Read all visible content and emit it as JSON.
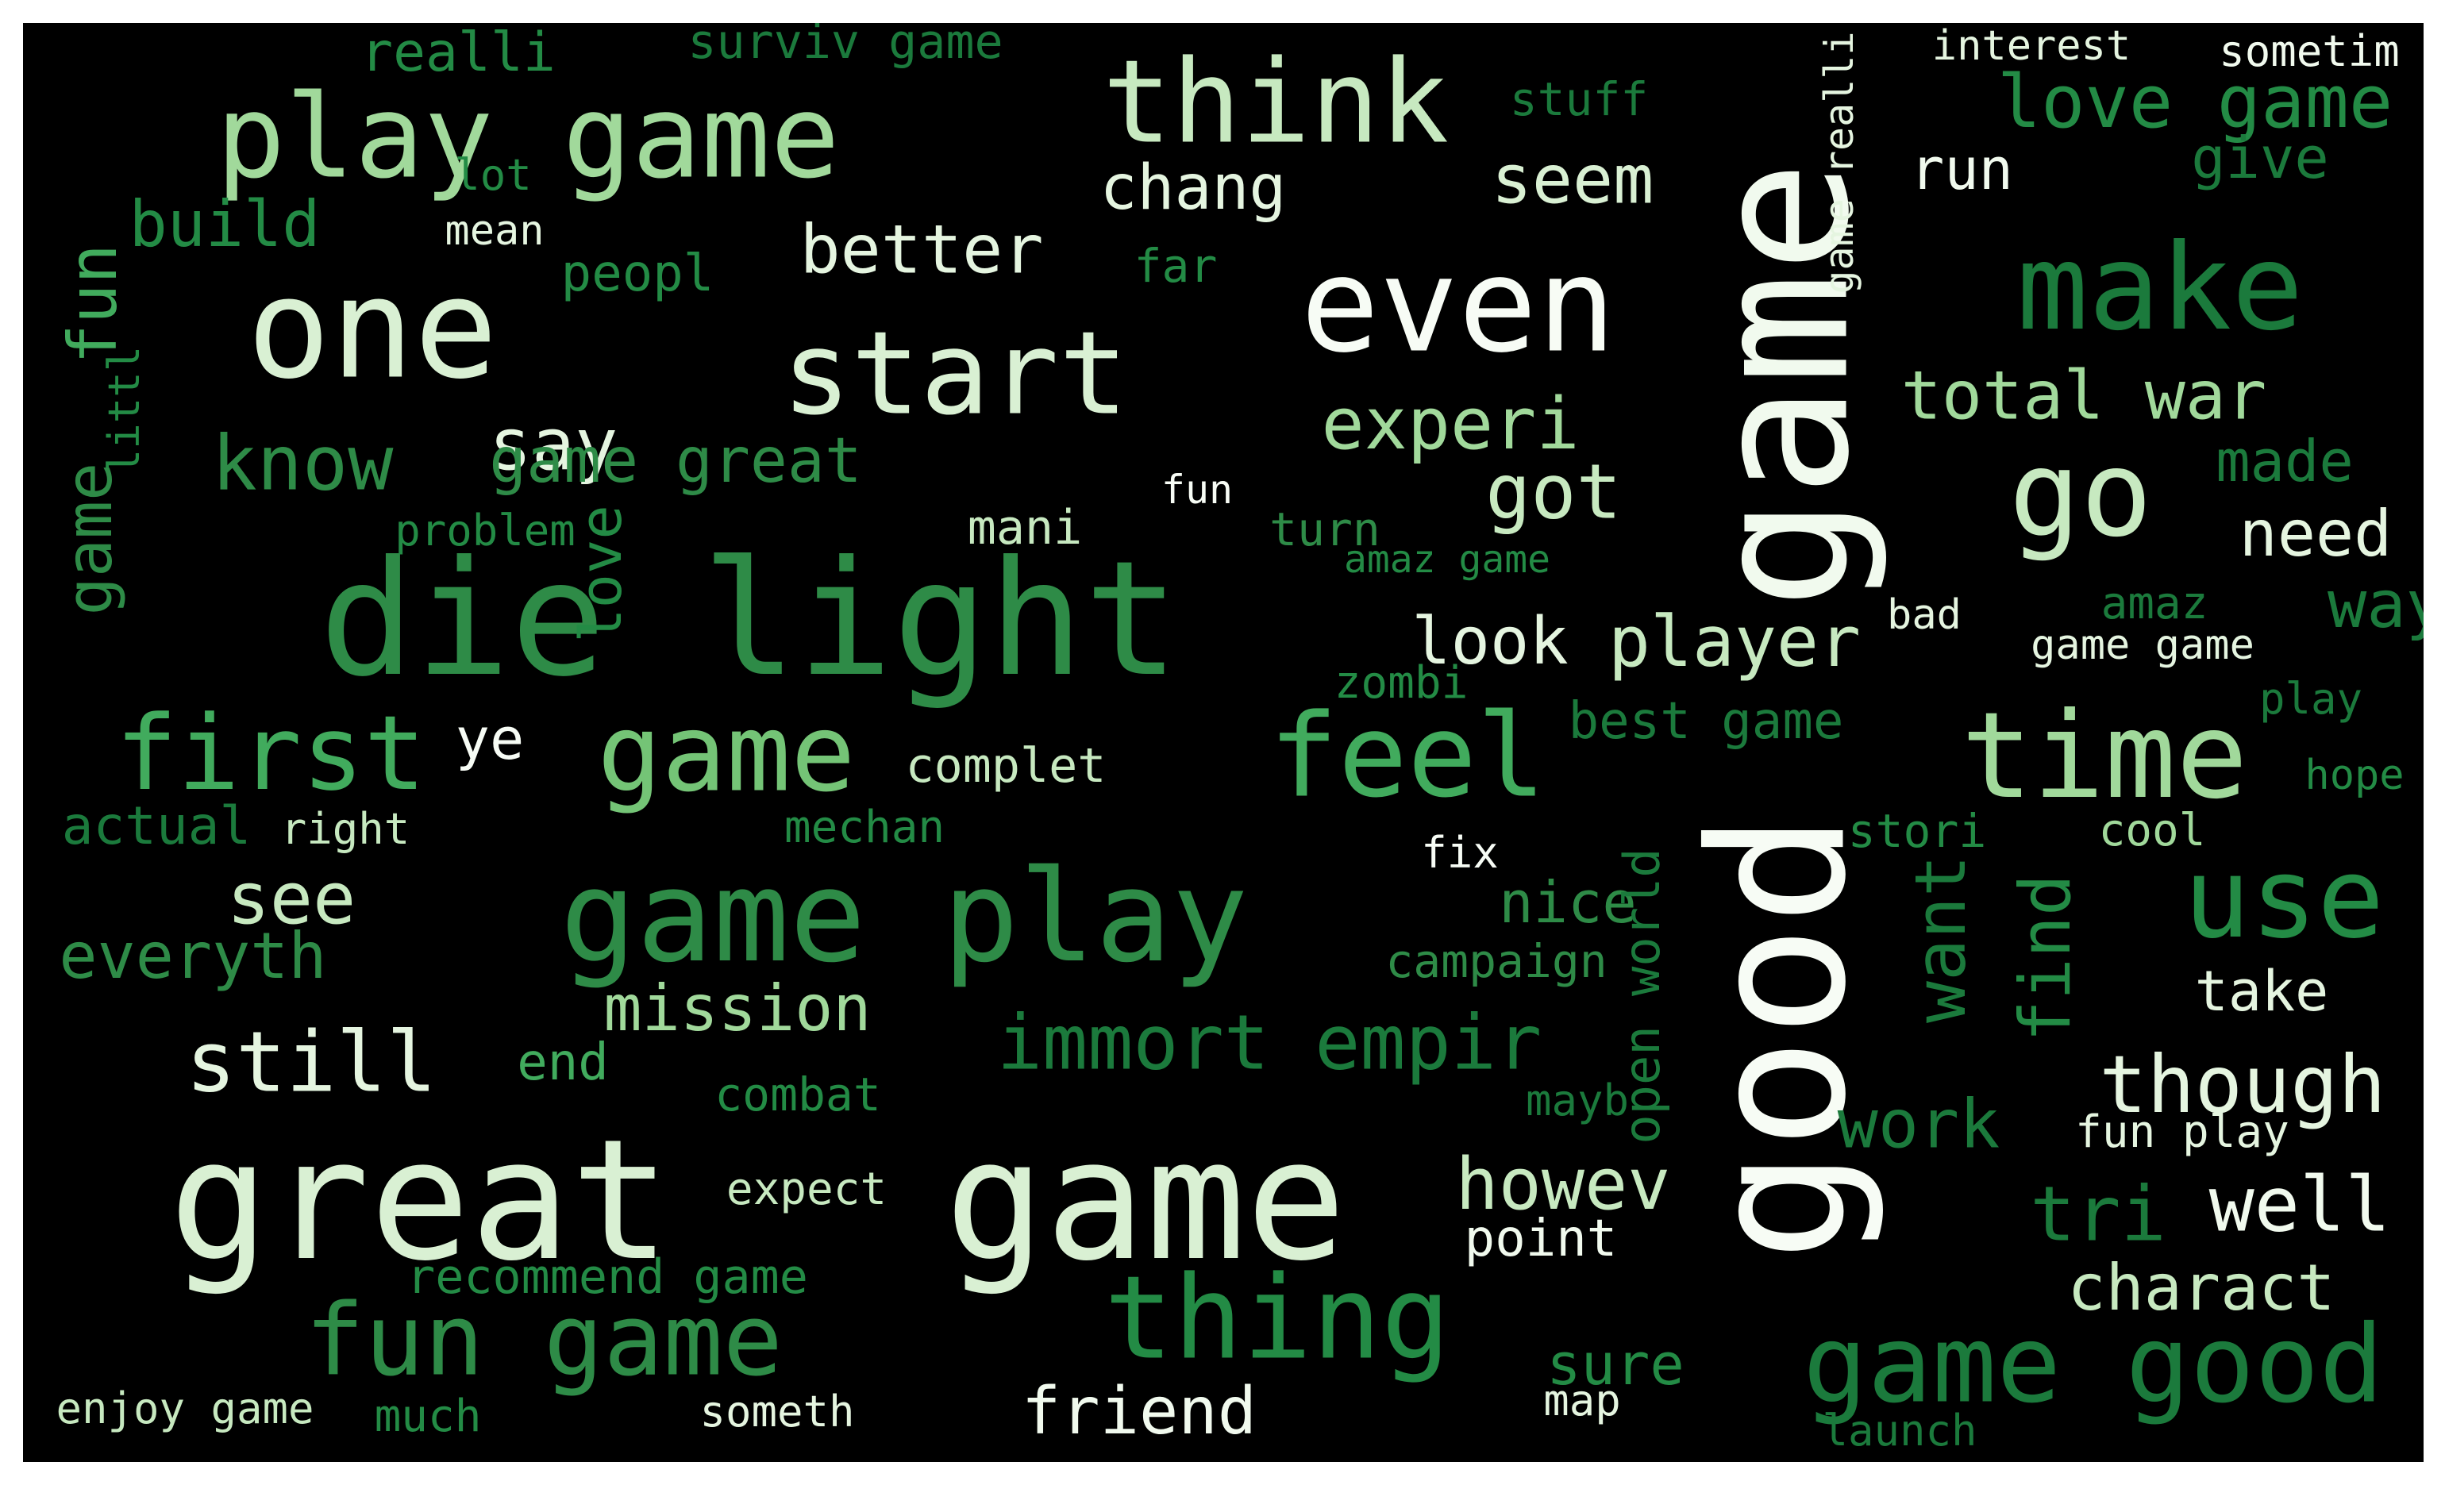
{
  "background": "#000000",
  "palette": [
    "#f1faee",
    "#d9f0d3",
    "#a1d99b",
    "#74c476",
    "#41ab5d",
    "#238b45",
    "#006d2c"
  ],
  "words": [
    {
      "text": "game",
      "color": "#f1faee",
      "rot": true
    },
    {
      "text": "good",
      "color": "#f7fcf5",
      "rot": true
    },
    {
      "text": "great",
      "color": "#d9f0d3"
    },
    {
      "text": "game",
      "color": "#d9f0d3"
    },
    {
      "text": "die light",
      "color": "#2e8b47"
    },
    {
      "text": "game play",
      "color": "#2e8b47"
    },
    {
      "text": "one",
      "color": "#d9f0d3"
    },
    {
      "text": "even",
      "color": "#f7fcf5"
    },
    {
      "text": "play game",
      "color": "#a1d99b"
    },
    {
      "text": "think",
      "color": "#c7e9c0"
    },
    {
      "text": "start",
      "color": "#d9f0d3"
    },
    {
      "text": "make",
      "color": "#1b7a3c"
    },
    {
      "text": "go",
      "color": "#c7e9c0"
    },
    {
      "text": "time",
      "color": "#a1d99b"
    },
    {
      "text": "feel",
      "color": "#41ab5d"
    },
    {
      "text": "first",
      "color": "#41ab5d"
    },
    {
      "text": "game",
      "color": "#74c476"
    },
    {
      "text": "use",
      "color": "#238b45"
    },
    {
      "text": "fun game",
      "color": "#2e8b47"
    },
    {
      "text": "thing",
      "color": "#238b45"
    },
    {
      "text": "game good",
      "color": "#1b7a3c"
    },
    {
      "text": "immort empir",
      "color": "#1b7a3c"
    },
    {
      "text": "better",
      "color": "#e5f5e0"
    },
    {
      "text": "experi",
      "color": "#a1d99b"
    },
    {
      "text": "total war",
      "color": "#a1d99b"
    },
    {
      "text": "love game",
      "color": "#238b45"
    },
    {
      "text": "know",
      "color": "#2e8b47"
    },
    {
      "text": "say",
      "color": "#e5f5e0"
    },
    {
      "text": "game great",
      "color": "#2e8b47"
    },
    {
      "text": "got",
      "color": "#c7e9c0"
    },
    {
      "text": "seem",
      "color": "#d9f0d3"
    },
    {
      "text": "chang",
      "color": "#e5f5e0"
    },
    {
      "text": "build",
      "color": "#238b45"
    },
    {
      "text": "player",
      "color": "#c7e9c0"
    },
    {
      "text": "look",
      "color": "#e5f5e0"
    },
    {
      "text": "still",
      "color": "#e5f5e0"
    },
    {
      "text": "though",
      "color": "#e5f5e0"
    },
    {
      "text": "howev",
      "color": "#c7e9c0"
    },
    {
      "text": "well",
      "color": "#f1faee"
    },
    {
      "text": "friend",
      "color": "#f1faee"
    },
    {
      "text": "charact",
      "color": "#c7e9c0"
    },
    {
      "text": "mission",
      "color": "#a1d99b"
    },
    {
      "text": "see",
      "color": "#c7e9c0"
    },
    {
      "text": "everyth",
      "color": "#2e8b47"
    },
    {
      "text": "tri",
      "color": "#1b7a3c"
    },
    {
      "text": "work",
      "color": "#1b7a3c"
    },
    {
      "text": "nice",
      "color": "#2e8b47"
    },
    {
      "text": "take",
      "color": "#e5f5e0"
    },
    {
      "text": "need",
      "color": "#e5f5e0"
    },
    {
      "text": "way",
      "color": "#1b7a3c"
    },
    {
      "text": "made",
      "color": "#1b7a3c"
    },
    {
      "text": "give",
      "color": "#1b7a3c"
    },
    {
      "text": "run",
      "color": "#f1faee"
    },
    {
      "text": "sure",
      "color": "#238b45"
    },
    {
      "text": "ye",
      "color": "#f7fcf5"
    },
    {
      "text": "complet",
      "color": "#c7e9c0"
    },
    {
      "text": "point",
      "color": "#f1faee"
    },
    {
      "text": "realli",
      "color": "#238b45"
    },
    {
      "text": "surviv game",
      "color": "#1b7a3c"
    },
    {
      "text": "stuff",
      "color": "#1b7a3c"
    },
    {
      "text": "interest",
      "color": "#e5f5e0"
    },
    {
      "text": "sometim",
      "color": "#f1faee"
    },
    {
      "text": "lot",
      "color": "#238b45"
    },
    {
      "text": "mean",
      "color": "#e5f5e0"
    },
    {
      "text": "peopl",
      "color": "#238b45"
    },
    {
      "text": "far",
      "color": "#238b45"
    },
    {
      "text": "problem",
      "color": "#238b45"
    },
    {
      "text": "fun",
      "color": "#f7fcf5"
    },
    {
      "text": "mani",
      "color": "#c7e9c0"
    },
    {
      "text": "turn",
      "color": "#2e8b47"
    },
    {
      "text": "amaz game",
      "color": "#238b45"
    },
    {
      "text": "zombi",
      "color": "#238b45"
    },
    {
      "text": "best game",
      "color": "#1b7a3c"
    },
    {
      "text": "bad",
      "color": "#e5f5e0"
    },
    {
      "text": "amaz",
      "color": "#1b7a3c"
    },
    {
      "text": "game game",
      "color": "#e5f5e0"
    },
    {
      "text": "play",
      "color": "#1b7a3c"
    },
    {
      "text": "hope",
      "color": "#238b45"
    },
    {
      "text": "stori",
      "color": "#238b45"
    },
    {
      "text": "cool",
      "color": "#a1d99b"
    },
    {
      "text": "actual",
      "color": "#1b7a3c"
    },
    {
      "text": "right",
      "color": "#c7e9c0"
    },
    {
      "text": "mechan",
      "color": "#238b45"
    },
    {
      "text": "fix",
      "color": "#f7fcf5"
    },
    {
      "text": "campaign",
      "color": "#2e8b47"
    },
    {
      "text": "end",
      "color": "#41ab5d"
    },
    {
      "text": "combat",
      "color": "#238b45"
    },
    {
      "text": "mayb",
      "color": "#1b7a3c"
    },
    {
      "text": "fun play",
      "color": "#e5f5e0"
    },
    {
      "text": "expect",
      "color": "#c7e9c0"
    },
    {
      "text": "recommend game",
      "color": "#238b45"
    },
    {
      "text": "enjoy game",
      "color": "#c7e9c0"
    },
    {
      "text": "much",
      "color": "#238b45"
    },
    {
      "text": "someth",
      "color": "#e5f5e0"
    },
    {
      "text": "map",
      "color": "#e5f5e0"
    },
    {
      "text": "launch",
      "color": "#1b7a3c"
    },
    {
      "text": "fun",
      "color": "#41ab5d",
      "rot": true
    },
    {
      "text": "littl",
      "color": "#238b45",
      "rot": true
    },
    {
      "text": "game",
      "color": "#2e8b47",
      "rot": true
    },
    {
      "text": "love",
      "color": "#238b45",
      "rot": true
    },
    {
      "text": "game realli",
      "color": "#e5f5e0",
      "rot": true
    },
    {
      "text": "want",
      "color": "#1b7a3c",
      "rot": true
    },
    {
      "text": "find",
      "color": "#238b45",
      "rot": true
    },
    {
      "text": "open world",
      "color": "#1b7a3c",
      "rot": true
    }
  ]
}
